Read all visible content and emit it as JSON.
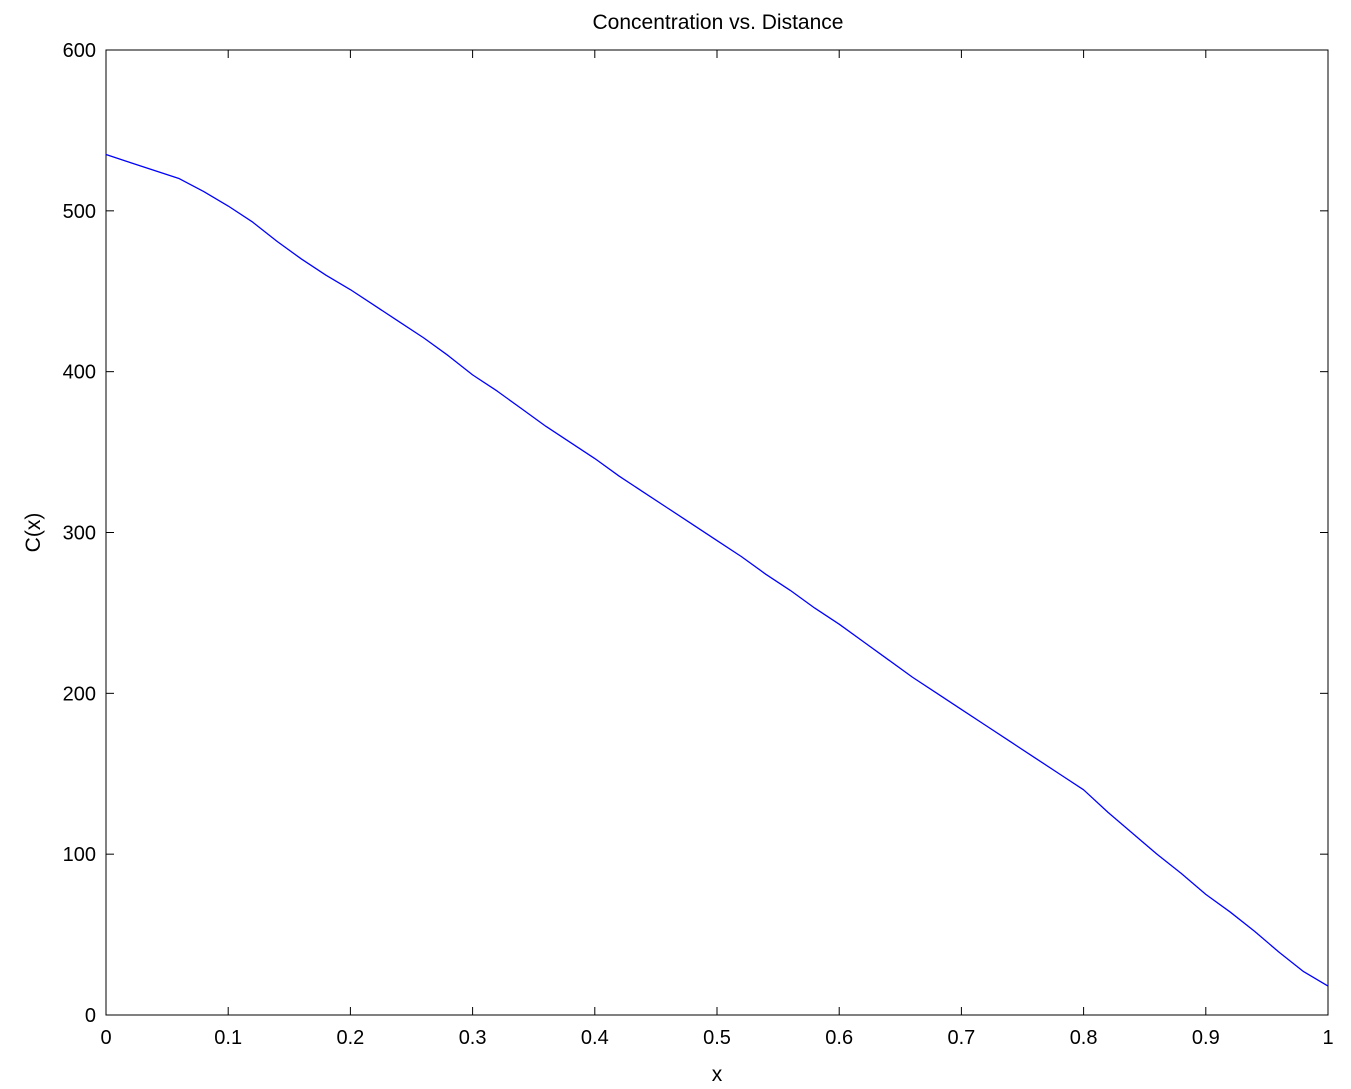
{
  "chart_data": {
    "type": "line",
    "title": "Concentration vs. Distance",
    "xlabel": "x",
    "ylabel": "C(x)",
    "xlim": [
      0,
      1
    ],
    "ylim": [
      0,
      600
    ],
    "xticks": [
      0,
      0.1,
      0.2,
      0.3,
      0.4,
      0.5,
      0.6,
      0.7,
      0.8,
      0.9,
      1
    ],
    "xtick_labels": [
      "0",
      "0.1",
      "0.2",
      "0.3",
      "0.4",
      "0.5",
      "0.6",
      "0.7",
      "0.8",
      "0.9",
      "1"
    ],
    "yticks": [
      0,
      100,
      200,
      300,
      400,
      500,
      600
    ],
    "ytick_labels": [
      "0",
      "100",
      "200",
      "300",
      "400",
      "500",
      "600"
    ],
    "grid": false,
    "line_color": "#0000ff",
    "series": [
      {
        "x": [
          0,
          0.02,
          0.04,
          0.06,
          0.08,
          0.1,
          0.12,
          0.14,
          0.16,
          0.18,
          0.2,
          0.22,
          0.24,
          0.26,
          0.28,
          0.3,
          0.32,
          0.34,
          0.36,
          0.38,
          0.4,
          0.42,
          0.44,
          0.46,
          0.48,
          0.5,
          0.52,
          0.54,
          0.56,
          0.58,
          0.6,
          0.62,
          0.64,
          0.66,
          0.68,
          0.7,
          0.72,
          0.74,
          0.76,
          0.78,
          0.8,
          0.82,
          0.84,
          0.86,
          0.88,
          0.9,
          0.92,
          0.94,
          0.96,
          0.98,
          1.0
        ],
        "y": [
          535,
          530,
          525,
          520,
          512,
          503,
          493,
          481,
          470,
          460,
          451,
          441,
          431,
          421,
          410,
          398,
          388,
          377,
          366,
          356,
          346,
          335,
          325,
          315,
          305,
          295,
          285,
          274,
          264,
          253,
          243,
          232,
          221,
          210,
          200,
          190,
          180,
          170,
          160,
          150,
          140,
          126,
          113,
          100,
          88,
          75,
          64,
          52,
          39,
          27,
          18
        ]
      }
    ]
  }
}
